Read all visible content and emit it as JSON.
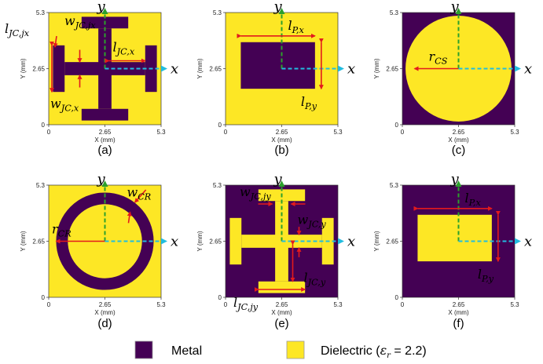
{
  "colors": {
    "metal": "#440154",
    "dielectric": "#fde725",
    "red": "#e31a1c",
    "green": "#2ca02c",
    "cyan": "#21bde0"
  },
  "common": {
    "xlabel": "X (mm)",
    "ylabel": "Y (mm)",
    "xticks": [
      "0",
      "2.65",
      "5.3"
    ],
    "yticks": [
      "5.3",
      "2.65",
      "0"
    ],
    "axis_y_symbol": "y",
    "axis_x_symbol": "x"
  },
  "panels": [
    {
      "caption": "(a)",
      "structure": "jerusalem-cross",
      "background": "dielectric",
      "shape": "metal",
      "annotations": [
        {
          "base": "l",
          "sub": "JC,jx"
        },
        {
          "base": "w",
          "sub": "JC,jx"
        },
        {
          "base": "l",
          "sub": "JC,x"
        },
        {
          "base": "w",
          "sub": "JC,x"
        }
      ]
    },
    {
      "caption": "(b)",
      "structure": "patch",
      "background": "dielectric",
      "shape": "metal",
      "annotations": [
        {
          "base": "l",
          "sub": "P,x"
        },
        {
          "base": "l",
          "sub": "P,y"
        }
      ]
    },
    {
      "caption": "(c)",
      "structure": "circular-slot",
      "background": "metal",
      "shape": "dielectric",
      "annotations": [
        {
          "base": "r",
          "sub": "CS"
        }
      ]
    },
    {
      "caption": "(d)",
      "structure": "circular-ring",
      "background": "dielectric",
      "shape": "metal",
      "annotations": [
        {
          "base": "w",
          "sub": "CR"
        },
        {
          "base": "r",
          "sub": "CR"
        }
      ]
    },
    {
      "caption": "(e)",
      "structure": "jerusalem-cross-slot",
      "background": "metal",
      "shape": "dielectric",
      "annotations": [
        {
          "base": "w",
          "sub": "JC,jy"
        },
        {
          "base": "w",
          "sub": "JC,y"
        },
        {
          "base": "l",
          "sub": "JC,y"
        },
        {
          "base": "l",
          "sub": "JC,jy"
        }
      ]
    },
    {
      "caption": "(f)",
      "structure": "patch-slot",
      "background": "metal",
      "shape": "dielectric",
      "annotations": [
        {
          "base": "l",
          "sub": "P,x"
        },
        {
          "base": "l",
          "sub": "P,y"
        }
      ]
    }
  ],
  "legend": {
    "metal_label": "Metal",
    "dielectric_label_prefix": "Dielectric (",
    "epsilon_symbol": "ε",
    "epsilon_sub": "r",
    "dielectric_label_suffix": " = 2.2)"
  }
}
